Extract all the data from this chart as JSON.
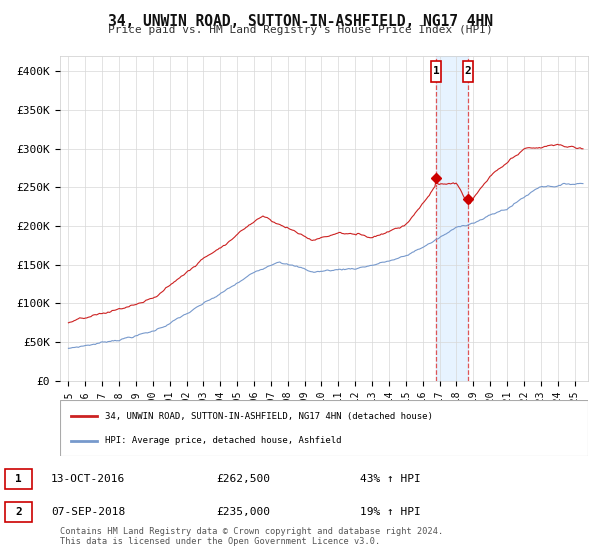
{
  "title": "34, UNWIN ROAD, SUTTON-IN-ASHFIELD, NG17 4HN",
  "subtitle": "Price paid vs. HM Land Registry's House Price Index (HPI)",
  "ylim": [
    0,
    420000
  ],
  "yticks": [
    0,
    50000,
    100000,
    150000,
    200000,
    250000,
    300000,
    350000,
    400000
  ],
  "ytick_labels": [
    "£0",
    "£50K",
    "£100K",
    "£150K",
    "£200K",
    "£250K",
    "£300K",
    "£350K",
    "£400K"
  ],
  "background_color": "#ffffff",
  "grid_color": "#d8d8d8",
  "sale1_date_label": "13-OCT-2016",
  "sale1_price": 262500,
  "sale1_pct": "43% ↑ HPI",
  "sale2_date_label": "07-SEP-2018",
  "sale2_price": 235000,
  "sale2_pct": "19% ↑ HPI",
  "sale1_x": 2016.79,
  "sale2_x": 2018.69,
  "vline_color": "#dd4444",
  "shade_color": "#ddeeff",
  "marker_color": "#cc0000",
  "legend_label_red": "34, UNWIN ROAD, SUTTON-IN-ASHFIELD, NG17 4HN (detached house)",
  "legend_label_blue": "HPI: Average price, detached house, Ashfield",
  "footnote": "Contains HM Land Registry data © Crown copyright and database right 2024.\nThis data is licensed under the Open Government Licence v3.0.",
  "red_line_color": "#cc2222",
  "blue_line_color": "#7799cc",
  "x_start": 1995.0,
  "x_end": 2025.5,
  "x_min": 1994.5,
  "x_max": 2025.8
}
